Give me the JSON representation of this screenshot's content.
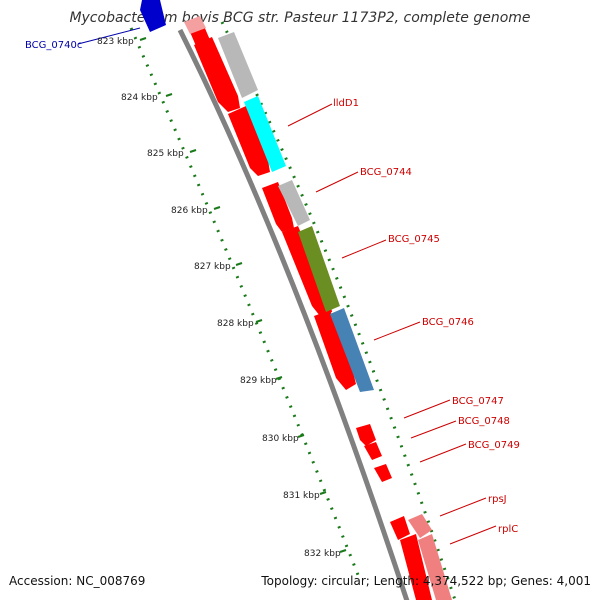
{
  "title": "Mycobacterium bovis BCG str. Pasteur 1173P2, complete genome",
  "footer": {
    "accession": "Accession: NC_008769",
    "summary": "Topology: circular; Length: 4,374,522 bp; Genes: 4,001"
  },
  "colors": {
    "backbone": "#808080",
    "cds": "#ff0000",
    "tick_ruler": "#1a7a1a",
    "label_red": "#cc0000",
    "label_blue": "#0000aa",
    "gray": "#b8b8b8",
    "cyan": "#00ffff",
    "olive": "#6b8e23",
    "steel": "#4682b4",
    "pink": "#f08080"
  },
  "ticks": [
    "823 kbp",
    "824 kbp",
    "825 kbp",
    "826 kbp",
    "827 kbp",
    "828 kbp",
    "829 kbp",
    "830 kbp",
    "831 kbp",
    "832 kbp"
  ],
  "gene_labels": [
    {
      "name": "BCG_0740c",
      "color": "blue"
    },
    {
      "name": "lldD1",
      "color": "red"
    },
    {
      "name": "BCG_0744",
      "color": "red"
    },
    {
      "name": "BCG_0745",
      "color": "red"
    },
    {
      "name": "BCG_0746",
      "color": "red"
    },
    {
      "name": "BCG_0747",
      "color": "red"
    },
    {
      "name": "BCG_0748",
      "color": "red"
    },
    {
      "name": "BCG_0749",
      "color": "red"
    },
    {
      "name": "rpsJ",
      "color": "red"
    },
    {
      "name": "rplC",
      "color": "red"
    }
  ]
}
